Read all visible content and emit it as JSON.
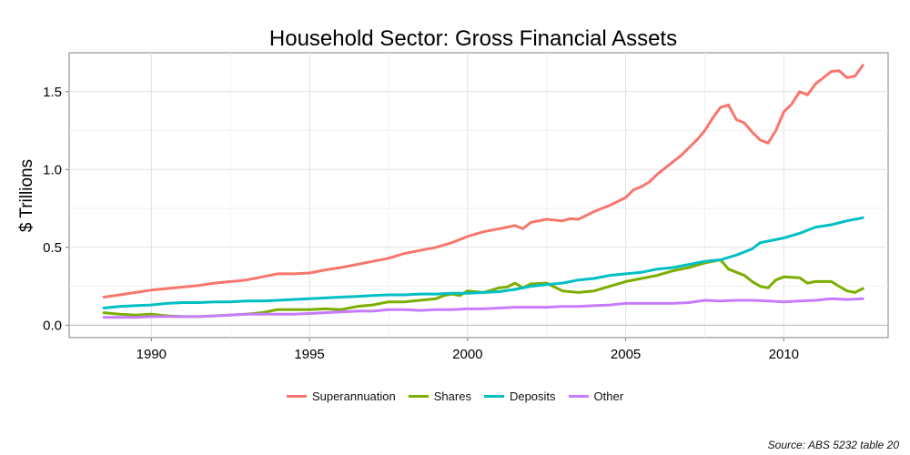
{
  "chart_data": {
    "type": "line",
    "title": "Household Sector: Gross Financial Assets",
    "xlabel": "",
    "ylabel": "$ Trillions",
    "xlim": [
      1987.4,
      2013.3
    ],
    "ylim": [
      -0.08,
      1.75
    ],
    "xticks": [
      1990,
      1995,
      2000,
      2005,
      2010
    ],
    "yticks": [
      0.0,
      0.5,
      1.0,
      1.5
    ],
    "ytick_labels": [
      "0.0",
      "0.5",
      "1.0",
      "1.5"
    ],
    "xtick_labels": [
      "1990",
      "1995",
      "2000",
      "2005",
      "2010"
    ],
    "grid": true,
    "legend_position": "bottom",
    "series": [
      {
        "name": "Superannuation",
        "color": "#F8766D",
        "points": [
          [
            1988.5,
            0.18
          ],
          [
            1989,
            0.195
          ],
          [
            1989.5,
            0.21
          ],
          [
            1990,
            0.225
          ],
          [
            1990.5,
            0.235
          ],
          [
            1991,
            0.245
          ],
          [
            1991.5,
            0.255
          ],
          [
            1992,
            0.27
          ],
          [
            1992.5,
            0.28
          ],
          [
            1993,
            0.29
          ],
          [
            1993.5,
            0.31
          ],
          [
            1994,
            0.33
          ],
          [
            1994.5,
            0.33
          ],
          [
            1995,
            0.335
          ],
          [
            1995.5,
            0.355
          ],
          [
            1996,
            0.37
          ],
          [
            1996.5,
            0.39
          ],
          [
            1997,
            0.41
          ],
          [
            1997.5,
            0.43
          ],
          [
            1998,
            0.46
          ],
          [
            1998.5,
            0.48
          ],
          [
            1999,
            0.5
          ],
          [
            1999.5,
            0.53
          ],
          [
            2000,
            0.57
          ],
          [
            2000.5,
            0.6
          ],
          [
            2001,
            0.62
          ],
          [
            2001.25,
            0.63
          ],
          [
            2001.5,
            0.64
          ],
          [
            2001.75,
            0.62
          ],
          [
            2002,
            0.66
          ],
          [
            2002.5,
            0.68
          ],
          [
            2003,
            0.67
          ],
          [
            2003.25,
            0.685
          ],
          [
            2003.5,
            0.68
          ],
          [
            2004,
            0.73
          ],
          [
            2004.5,
            0.77
          ],
          [
            2005,
            0.82
          ],
          [
            2005.25,
            0.87
          ],
          [
            2005.5,
            0.89
          ],
          [
            2005.75,
            0.92
          ],
          [
            2006,
            0.97
          ],
          [
            2006.25,
            1.01
          ],
          [
            2006.5,
            1.05
          ],
          [
            2006.75,
            1.09
          ],
          [
            2007,
            1.14
          ],
          [
            2007.25,
            1.19
          ],
          [
            2007.5,
            1.25
          ],
          [
            2007.75,
            1.33
          ],
          [
            2008,
            1.4
          ],
          [
            2008.25,
            1.415
          ],
          [
            2008.5,
            1.32
          ],
          [
            2008.75,
            1.3
          ],
          [
            2009,
            1.24
          ],
          [
            2009.25,
            1.19
          ],
          [
            2009.5,
            1.17
          ],
          [
            2009.75,
            1.25
          ],
          [
            2010,
            1.37
          ],
          [
            2010.25,
            1.42
          ],
          [
            2010.5,
            1.5
          ],
          [
            2010.75,
            1.48
          ],
          [
            2011,
            1.55
          ],
          [
            2011.25,
            1.59
          ],
          [
            2011.5,
            1.63
          ],
          [
            2011.75,
            1.635
          ],
          [
            2012,
            1.59
          ],
          [
            2012.25,
            1.6
          ],
          [
            2012.5,
            1.67
          ]
        ]
      },
      {
        "name": "Shares",
        "color": "#7CAE00",
        "points": [
          [
            1988.5,
            0.08
          ],
          [
            1989,
            0.07
          ],
          [
            1989.5,
            0.065
          ],
          [
            1990,
            0.07
          ],
          [
            1990.5,
            0.06
          ],
          [
            1991,
            0.055
          ],
          [
            1991.5,
            0.055
          ],
          [
            1992,
            0.06
          ],
          [
            1992.5,
            0.065
          ],
          [
            1993,
            0.07
          ],
          [
            1993.5,
            0.08
          ],
          [
            1994,
            0.1
          ],
          [
            1994.5,
            0.1
          ],
          [
            1995,
            0.1
          ],
          [
            1995.5,
            0.105
          ],
          [
            1996,
            0.1
          ],
          [
            1996.5,
            0.12
          ],
          [
            1997,
            0.13
          ],
          [
            1997.5,
            0.15
          ],
          [
            1998,
            0.15
          ],
          [
            1998.5,
            0.16
          ],
          [
            1999,
            0.17
          ],
          [
            1999.25,
            0.19
          ],
          [
            1999.5,
            0.2
          ],
          [
            1999.75,
            0.19
          ],
          [
            2000,
            0.22
          ],
          [
            2000.5,
            0.21
          ],
          [
            2001,
            0.24
          ],
          [
            2001.25,
            0.245
          ],
          [
            2001.5,
            0.27
          ],
          [
            2001.75,
            0.24
          ],
          [
            2002,
            0.265
          ],
          [
            2002.5,
            0.27
          ],
          [
            2003,
            0.22
          ],
          [
            2003.5,
            0.21
          ],
          [
            2004,
            0.22
          ],
          [
            2004.5,
            0.25
          ],
          [
            2005,
            0.28
          ],
          [
            2005.5,
            0.3
          ],
          [
            2006,
            0.32
          ],
          [
            2006.5,
            0.35
          ],
          [
            2007,
            0.37
          ],
          [
            2007.5,
            0.4
          ],
          [
            2008,
            0.42
          ],
          [
            2008.25,
            0.36
          ],
          [
            2008.5,
            0.34
          ],
          [
            2008.75,
            0.32
          ],
          [
            2009,
            0.28
          ],
          [
            2009.25,
            0.25
          ],
          [
            2009.5,
            0.24
          ],
          [
            2009.75,
            0.29
          ],
          [
            2010,
            0.31
          ],
          [
            2010.5,
            0.305
          ],
          [
            2010.75,
            0.27
          ],
          [
            2011,
            0.28
          ],
          [
            2011.5,
            0.28
          ],
          [
            2011.75,
            0.25
          ],
          [
            2012,
            0.22
          ],
          [
            2012.25,
            0.21
          ],
          [
            2012.5,
            0.235
          ]
        ]
      },
      {
        "name": "Deposits",
        "color": "#00BFC4",
        "points": [
          [
            1988.5,
            0.11
          ],
          [
            1989,
            0.12
          ],
          [
            1989.5,
            0.125
          ],
          [
            1990,
            0.13
          ],
          [
            1990.5,
            0.14
          ],
          [
            1991,
            0.145
          ],
          [
            1991.5,
            0.145
          ],
          [
            1992,
            0.15
          ],
          [
            1992.5,
            0.15
          ],
          [
            1993,
            0.155
          ],
          [
            1993.5,
            0.155
          ],
          [
            1994,
            0.16
          ],
          [
            1994.5,
            0.165
          ],
          [
            1995,
            0.17
          ],
          [
            1995.5,
            0.175
          ],
          [
            1996,
            0.18
          ],
          [
            1996.5,
            0.185
          ],
          [
            1997,
            0.19
          ],
          [
            1997.5,
            0.195
          ],
          [
            1998,
            0.195
          ],
          [
            1998.5,
            0.2
          ],
          [
            1999,
            0.2
          ],
          [
            1999.5,
            0.205
          ],
          [
            2000,
            0.205
          ],
          [
            2000.5,
            0.21
          ],
          [
            2001,
            0.215
          ],
          [
            2001.5,
            0.23
          ],
          [
            2002,
            0.25
          ],
          [
            2002.5,
            0.26
          ],
          [
            2003,
            0.27
          ],
          [
            2003.5,
            0.29
          ],
          [
            2004,
            0.3
          ],
          [
            2004.5,
            0.32
          ],
          [
            2005,
            0.33
          ],
          [
            2005.5,
            0.34
          ],
          [
            2006,
            0.36
          ],
          [
            2006.5,
            0.37
          ],
          [
            2007,
            0.39
          ],
          [
            2007.5,
            0.41
          ],
          [
            2008,
            0.42
          ],
          [
            2008.5,
            0.45
          ],
          [
            2009,
            0.49
          ],
          [
            2009.25,
            0.53
          ],
          [
            2009.5,
            0.54
          ],
          [
            2010,
            0.56
          ],
          [
            2010.5,
            0.59
          ],
          [
            2010.75,
            0.61
          ],
          [
            2011,
            0.63
          ],
          [
            2011.5,
            0.645
          ],
          [
            2012,
            0.67
          ],
          [
            2012.5,
            0.69
          ]
        ]
      },
      {
        "name": "Other",
        "color": "#C77CFF",
        "points": [
          [
            1988.5,
            0.05
          ],
          [
            1989,
            0.05
          ],
          [
            1989.5,
            0.05
          ],
          [
            1990,
            0.055
          ],
          [
            1990.5,
            0.055
          ],
          [
            1991,
            0.055
          ],
          [
            1991.5,
            0.055
          ],
          [
            1992,
            0.06
          ],
          [
            1992.5,
            0.065
          ],
          [
            1993,
            0.07
          ],
          [
            1993.5,
            0.07
          ],
          [
            1994,
            0.07
          ],
          [
            1994.5,
            0.07
          ],
          [
            1995,
            0.075
          ],
          [
            1995.5,
            0.08
          ],
          [
            1996,
            0.085
          ],
          [
            1996.5,
            0.09
          ],
          [
            1997,
            0.09
          ],
          [
            1997.5,
            0.1
          ],
          [
            1998,
            0.1
          ],
          [
            1998.5,
            0.095
          ],
          [
            1999,
            0.1
          ],
          [
            1999.5,
            0.1
          ],
          [
            2000,
            0.105
          ],
          [
            2000.5,
            0.105
          ],
          [
            2001,
            0.11
          ],
          [
            2001.5,
            0.115
          ],
          [
            2002,
            0.115
          ],
          [
            2002.5,
            0.115
          ],
          [
            2003,
            0.12
          ],
          [
            2003.5,
            0.12
          ],
          [
            2004,
            0.125
          ],
          [
            2004.5,
            0.13
          ],
          [
            2005,
            0.14
          ],
          [
            2005.5,
            0.14
          ],
          [
            2006,
            0.14
          ],
          [
            2006.5,
            0.14
          ],
          [
            2007,
            0.145
          ],
          [
            2007.5,
            0.16
          ],
          [
            2008,
            0.155
          ],
          [
            2008.5,
            0.16
          ],
          [
            2009,
            0.16
          ],
          [
            2009.5,
            0.155
          ],
          [
            2010,
            0.15
          ],
          [
            2010.5,
            0.155
          ],
          [
            2011,
            0.16
          ],
          [
            2011.5,
            0.17
          ],
          [
            2012,
            0.165
          ],
          [
            2012.5,
            0.17
          ]
        ]
      }
    ],
    "source_note": "Source: ABS 5232 table 20"
  }
}
